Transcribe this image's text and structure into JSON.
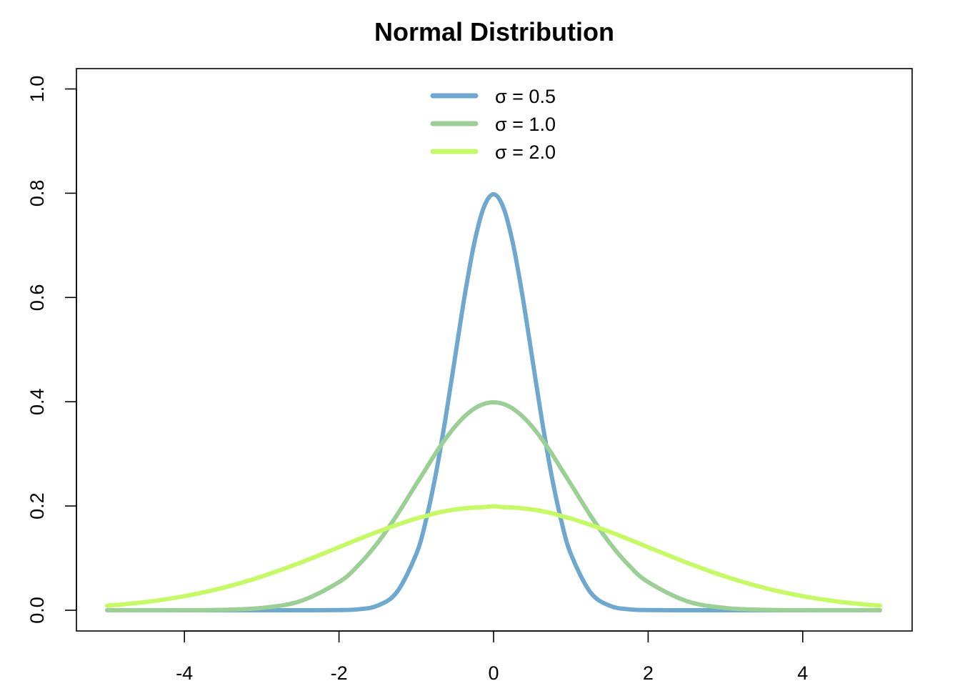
{
  "chart_data": {
    "type": "line",
    "title": "Normal Distribution",
    "xlabel": "",
    "ylabel": "",
    "xlim": [
      -5,
      5
    ],
    "ylim": [
      0,
      1
    ],
    "x_ticks": [
      -4,
      -2,
      0,
      2,
      4
    ],
    "x_tick_labels": [
      "-4",
      "-2",
      "0",
      "2",
      "4"
    ],
    "y_ticks": [
      0,
      0.2,
      0.4,
      0.6,
      0.8,
      1.0
    ],
    "y_tick_labels": [
      "0.0",
      "0.2",
      "0.4",
      "0.6",
      "0.8",
      "1.0"
    ],
    "legend_position": "top",
    "grid": false,
    "x": [
      -5,
      -4.5,
      -4,
      -3.5,
      -3,
      -2.5,
      -2,
      -1.75,
      -1.5,
      -1.25,
      -1,
      -0.875,
      -0.75,
      -0.625,
      -0.5,
      -0.375,
      -0.25,
      -0.125,
      0,
      0.125,
      0.25,
      0.375,
      0.5,
      0.625,
      0.75,
      0.875,
      1,
      1.25,
      1.5,
      1.75,
      2,
      2.5,
      3,
      3.5,
      4,
      4.5,
      5
    ],
    "series": [
      {
        "name": "σ = 0.5",
        "color": "#6fa8cf",
        "values": [
          0,
          0,
          0,
          0,
          0,
          0,
          0.0003,
          0.0018,
          0.0089,
          0.035,
          0.108,
          0.1725,
          0.259,
          0.3653,
          0.4839,
          0.6023,
          0.7041,
          0.7733,
          0.7979,
          0.7733,
          0.7041,
          0.6023,
          0.4839,
          0.3653,
          0.259,
          0.1725,
          0.108,
          0.035,
          0.0089,
          0.0018,
          0.0003,
          0,
          0,
          0,
          0,
          0,
          0
        ]
      },
      {
        "name": "σ = 1.0",
        "color": "#9ccf96",
        "values": [
          1.5e-06,
          1.6e-05,
          0.00013,
          0.00087,
          0.0044,
          0.0175,
          0.054,
          0.0863,
          0.1295,
          0.1826,
          0.242,
          0.2714,
          0.3011,
          0.3282,
          0.3521,
          0.3719,
          0.3867,
          0.3958,
          0.3989,
          0.3958,
          0.3867,
          0.3719,
          0.3521,
          0.3282,
          0.3011,
          0.2714,
          0.242,
          0.1826,
          0.1295,
          0.0863,
          0.054,
          0.0175,
          0.0044,
          0.00087,
          0.00013,
          1.6e-05,
          1.5e-06
        ]
      },
      {
        "name": "σ = 2.0",
        "color": "#c6f966",
        "values": [
          0.0088,
          0.0158,
          0.027,
          0.0431,
          0.0648,
          0.0913,
          0.121,
          0.1362,
          0.1506,
          0.1639,
          0.176,
          0.1808,
          0.1863,
          0.1902,
          0.1933,
          0.1955,
          0.197,
          0.1977,
          0.1995,
          0.1977,
          0.197,
          0.1955,
          0.1933,
          0.1902,
          0.1863,
          0.1808,
          0.176,
          0.1639,
          0.1506,
          0.1362,
          0.121,
          0.0913,
          0.0648,
          0.0431,
          0.027,
          0.0158,
          0.0088
        ]
      }
    ]
  }
}
